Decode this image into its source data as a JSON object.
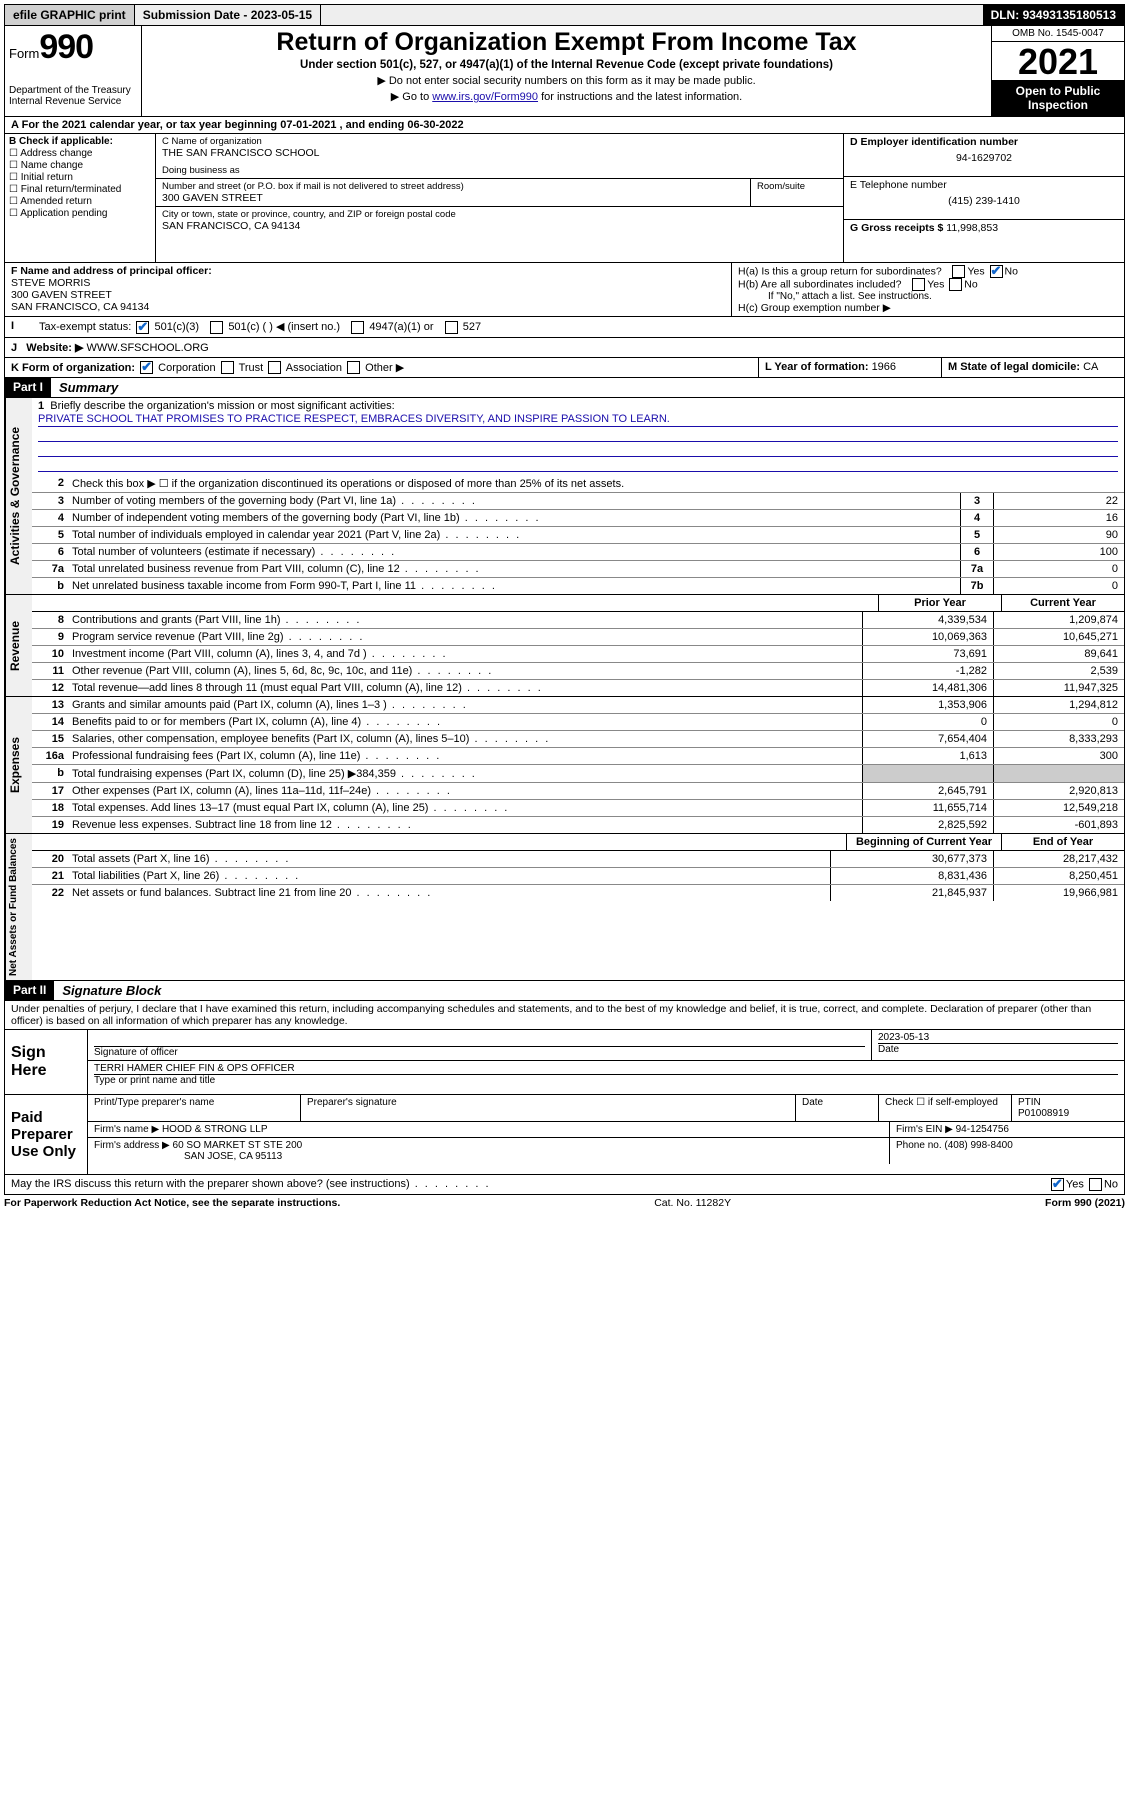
{
  "topbar": {
    "efile": "efile GRAPHIC print",
    "submission_label": "Submission Date - ",
    "submission_date": "2023-05-15",
    "dln_label": "DLN: ",
    "dln": "93493135180513"
  },
  "header": {
    "form_label": "Form",
    "form_num": "990",
    "dept": "Department of the Treasury",
    "irs": "Internal Revenue Service",
    "title": "Return of Organization Exempt From Income Tax",
    "sub": "Under section 501(c), 527, or 4947(a)(1) of the Internal Revenue Code (except private foundations)",
    "note1": "▶ Do not enter social security numbers on this form as it may be made public.",
    "note2_a": "▶ Go to ",
    "note2_link": "www.irs.gov/Form990",
    "note2_b": " for instructions and the latest information.",
    "omb": "OMB No. 1545-0047",
    "year": "2021",
    "open": "Open to Public Inspection"
  },
  "period": {
    "text_a": "For the 2021 calendar year, or tax year beginning ",
    "begin": "07-01-2021",
    "text_b": " , and ending ",
    "end": "06-30-2022"
  },
  "boxB": {
    "hdr": "B Check if applicable:",
    "addr": "Address change",
    "name": "Name change",
    "init": "Initial return",
    "final": "Final return/terminated",
    "amend": "Amended return",
    "app": "Application pending"
  },
  "boxC": {
    "name_lbl": "C Name of organization",
    "name": "THE SAN FRANCISCO SCHOOL",
    "dba_lbl": "Doing business as",
    "dba": "",
    "street_lbl": "Number and street (or P.O. box if mail is not delivered to street address)",
    "room_lbl": "Room/suite",
    "street": "300 GAVEN STREET",
    "city_lbl": "City or town, state or province, country, and ZIP or foreign postal code",
    "city": "SAN FRANCISCO, CA  94134"
  },
  "boxD": {
    "lbl": "D Employer identification number",
    "val": "94-1629702"
  },
  "boxE": {
    "lbl": "E Telephone number",
    "val": "(415) 239-1410"
  },
  "boxG": {
    "lbl": "G Gross receipts $ ",
    "val": "11,998,853"
  },
  "boxF": {
    "lbl": "F Name and address of principal officer:",
    "name": "STEVE MORRIS",
    "street": "300 GAVEN STREET",
    "city": "SAN FRANCISCO, CA  94134"
  },
  "boxH": {
    "a": "H(a)  Is this a group return for subordinates?",
    "b_lbl": "H(b)  Are all subordinates included?",
    "b_note": "If \"No,\" attach a list. See instructions.",
    "c": "H(c)  Group exemption number ▶"
  },
  "boxI": {
    "lbl": "Tax-exempt status:",
    "o1": "501(c)(3)",
    "o2": "501(c) (    ) ◀ (insert no.)",
    "o3": "4947(a)(1) or",
    "o4": "527"
  },
  "boxJ": {
    "lbl": "Website: ▶",
    "val": "WWW.SFSCHOOL.ORG"
  },
  "boxK": {
    "lbl": "K Form of organization:",
    "corp": "Corporation",
    "trust": "Trust",
    "assoc": "Association",
    "other": "Other ▶"
  },
  "boxL": {
    "lbl": "L Year of formation: ",
    "val": "1966"
  },
  "boxM": {
    "lbl": "M State of legal domicile: ",
    "val": "CA"
  },
  "part1": {
    "lbl": "Part I",
    "title": "Summary",
    "vtab_gov": "Activities & Governance",
    "vtab_rev": "Revenue",
    "vtab_exp": "Expenses",
    "vtab_net": "Net Assets or Fund Balances",
    "line1_lbl": "Briefly describe the organization's mission or most significant activities:",
    "mission": "PRIVATE SCHOOL THAT PROMISES TO PRACTICE RESPECT, EMBRACES DIVERSITY, AND INSPIRE PASSION TO LEARN.",
    "line2": "Check this box ▶ ☐ if the organization discontinued its operations or disposed of more than 25% of its net assets.",
    "prior_hdr": "Prior Year",
    "curr_hdr": "Current Year",
    "begin_hdr": "Beginning of Current Year",
    "end_hdr": "End of Year",
    "lines_gov": [
      {
        "n": "3",
        "t": "Number of voting members of the governing body (Part VI, line 1a)",
        "box": "3",
        "v": "22"
      },
      {
        "n": "4",
        "t": "Number of independent voting members of the governing body (Part VI, line 1b)",
        "box": "4",
        "v": "16"
      },
      {
        "n": "5",
        "t": "Total number of individuals employed in calendar year 2021 (Part V, line 2a)",
        "box": "5",
        "v": "90"
      },
      {
        "n": "6",
        "t": "Total number of volunteers (estimate if necessary)",
        "box": "6",
        "v": "100"
      },
      {
        "n": "7a",
        "t": "Total unrelated business revenue from Part VIII, column (C), line 12",
        "box": "7a",
        "v": "0"
      },
      {
        "n": "b",
        "t": "Net unrelated business taxable income from Form 990-T, Part I, line 11",
        "box": "7b",
        "v": "0"
      }
    ],
    "lines_rev": [
      {
        "n": "8",
        "t": "Contributions and grants (Part VIII, line 1h)",
        "p": "4,339,534",
        "c": "1,209,874"
      },
      {
        "n": "9",
        "t": "Program service revenue (Part VIII, line 2g)",
        "p": "10,069,363",
        "c": "10,645,271"
      },
      {
        "n": "10",
        "t": "Investment income (Part VIII, column (A), lines 3, 4, and 7d )",
        "p": "73,691",
        "c": "89,641"
      },
      {
        "n": "11",
        "t": "Other revenue (Part VIII, column (A), lines 5, 6d, 8c, 9c, 10c, and 11e)",
        "p": "-1,282",
        "c": "2,539"
      },
      {
        "n": "12",
        "t": "Total revenue—add lines 8 through 11 (must equal Part VIII, column (A), line 12)",
        "p": "14,481,306",
        "c": "11,947,325"
      }
    ],
    "lines_exp": [
      {
        "n": "13",
        "t": "Grants and similar amounts paid (Part IX, column (A), lines 1–3 )",
        "p": "1,353,906",
        "c": "1,294,812"
      },
      {
        "n": "14",
        "t": "Benefits paid to or for members (Part IX, column (A), line 4)",
        "p": "0",
        "c": "0"
      },
      {
        "n": "15",
        "t": "Salaries, other compensation, employee benefits (Part IX, column (A), lines 5–10)",
        "p": "7,654,404",
        "c": "8,333,293"
      },
      {
        "n": "16a",
        "t": "Professional fundraising fees (Part IX, column (A), line 11e)",
        "p": "1,613",
        "c": "300"
      },
      {
        "n": "b",
        "t": "Total fundraising expenses (Part IX, column (D), line 25) ▶384,359",
        "p": "",
        "c": "",
        "grey": true
      },
      {
        "n": "17",
        "t": "Other expenses (Part IX, column (A), lines 11a–11d, 11f–24e)",
        "p": "2,645,791",
        "c": "2,920,813"
      },
      {
        "n": "18",
        "t": "Total expenses. Add lines 13–17 (must equal Part IX, column (A), line 25)",
        "p": "11,655,714",
        "c": "12,549,218"
      },
      {
        "n": "19",
        "t": "Revenue less expenses. Subtract line 18 from line 12",
        "p": "2,825,592",
        "c": "-601,893"
      }
    ],
    "lines_net": [
      {
        "n": "20",
        "t": "Total assets (Part X, line 16)",
        "p": "30,677,373",
        "c": "28,217,432"
      },
      {
        "n": "21",
        "t": "Total liabilities (Part X, line 26)",
        "p": "8,831,436",
        "c": "8,250,451"
      },
      {
        "n": "22",
        "t": "Net assets or fund balances. Subtract line 21 from line 20",
        "p": "21,845,937",
        "c": "19,966,981"
      }
    ]
  },
  "part2": {
    "lbl": "Part II",
    "title": "Signature Block",
    "decl": "Under penalties of perjury, I declare that I have examined this return, including accompanying schedules and statements, and to the best of my knowledge and belief, it is true, correct, and complete. Declaration of preparer (other than officer) is based on all information of which preparer has any knowledge.",
    "sign_here": "Sign Here",
    "sig_officer": "Signature of officer",
    "sig_date_val": "2023-05-13",
    "date_lbl": "Date",
    "officer_name": "TERRI HAMER  CHIEF FIN & OPS OFFICER",
    "type_name": "Type or print name and title",
    "paid": "Paid Preparer Use Only",
    "prep_name_lbl": "Print/Type preparer's name",
    "prep_sig_lbl": "Preparer's signature",
    "check_self": "Check ☐ if self-employed",
    "ptin_lbl": "PTIN",
    "ptin": "P01008919",
    "firm_name_lbl": "Firm's name   ▶",
    "firm_name": "HOOD & STRONG LLP",
    "firm_ein_lbl": "Firm's EIN ▶",
    "firm_ein": "94-1254756",
    "firm_addr_lbl": "Firm's address ▶",
    "firm_addr1": "60 SO MARKET ST STE 200",
    "firm_addr2": "SAN JOSE, CA  95113",
    "phone_lbl": "Phone no. ",
    "phone": "(408) 998-8400",
    "discuss": "May the IRS discuss this return with the preparer shown above? (see instructions)"
  },
  "footer": {
    "left": "For Paperwork Reduction Act Notice, see the separate instructions.",
    "mid": "Cat. No. 11282Y",
    "right": "Form 990 (2021)"
  }
}
